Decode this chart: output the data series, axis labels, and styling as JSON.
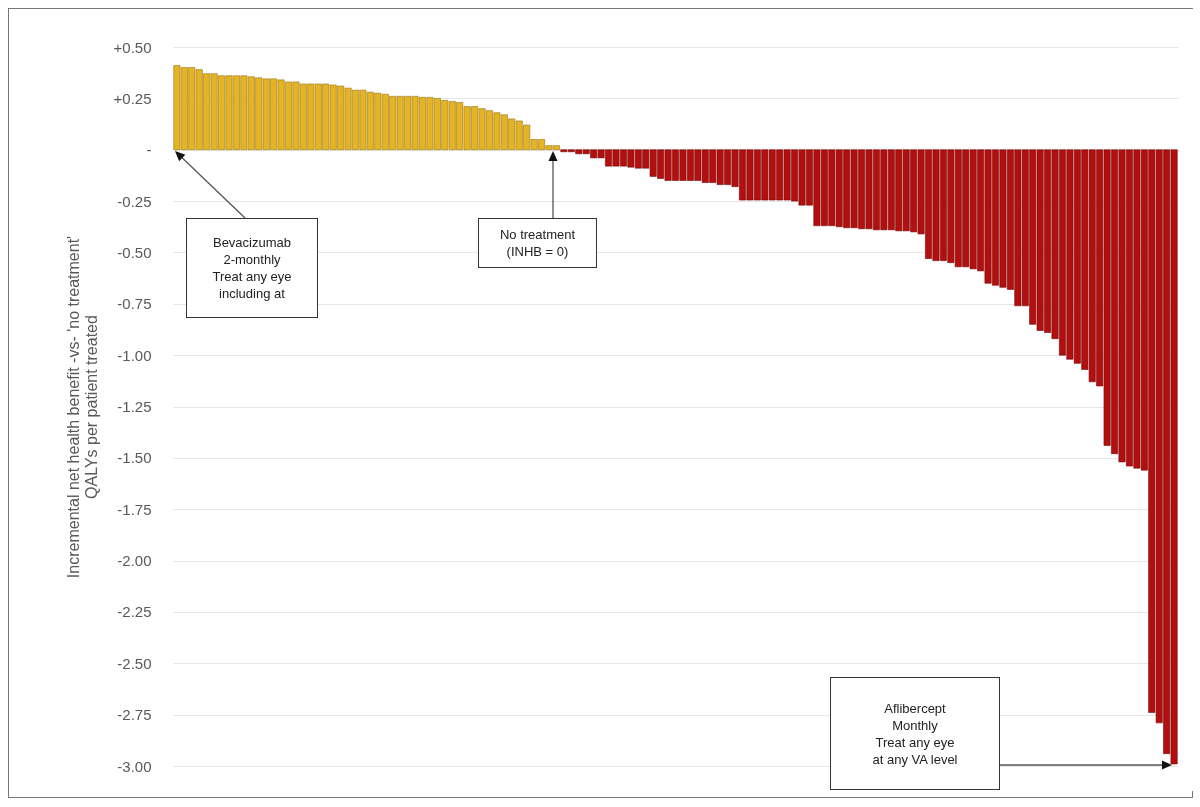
{
  "chart_data": {
    "type": "bar",
    "ylabel": "Incremental net health benefit -vs- 'no treatment'\nQALYs per patient treated",
    "categories": [
      null,
      null,
      null,
      null,
      null,
      null,
      null,
      null,
      null,
      null,
      null,
      null,
      null,
      null,
      null,
      null,
      null,
      null,
      null,
      null,
      null,
      null,
      null,
      null,
      null,
      null,
      null,
      null,
      null,
      null,
      null,
      null,
      null,
      null,
      null,
      null,
      null,
      null,
      null,
      null,
      null,
      null,
      null,
      null,
      null,
      null,
      null,
      null,
      null,
      null,
      null,
      null,
      null,
      null,
      null,
      null,
      null,
      null,
      null,
      null,
      null,
      null,
      null,
      null,
      null,
      null,
      null,
      null,
      null,
      null,
      null,
      null,
      null,
      null,
      null,
      null,
      null,
      null,
      null,
      null,
      null,
      null,
      null,
      null,
      null,
      null,
      null,
      null,
      null,
      null,
      null,
      null,
      null,
      null,
      null,
      null,
      null,
      null,
      null,
      null,
      null,
      null,
      null,
      null,
      null,
      null,
      null,
      null,
      null,
      null,
      null,
      null,
      null,
      null,
      null,
      null,
      null,
      null,
      null,
      null,
      null,
      null,
      null,
      null,
      null,
      null,
      null,
      null,
      null,
      null,
      null,
      null,
      null,
      null,
      null
    ],
    "series": [
      {
        "color": "#e6b422",
        "values": [
          0.41,
          0.4,
          0.4,
          0.39,
          0.37,
          0.37,
          0.36,
          0.36,
          0.36,
          0.36,
          0.355,
          0.35,
          0.345,
          0.345,
          0.34,
          0.33,
          0.33,
          0.32,
          0.32,
          0.32,
          0.32,
          0.315,
          0.31,
          0.3,
          0.29,
          0.29,
          0.28,
          0.275,
          0.27,
          0.26,
          0.26,
          0.26,
          0.26,
          0.255,
          0.255,
          0.25,
          0.24,
          0.235,
          0.23,
          0.21,
          0.21,
          0.2,
          0.19,
          0.18,
          0.17,
          0.15,
          0.14,
          0.12,
          0.05,
          0.05,
          0.02,
          0.02,
          null,
          null,
          null,
          null,
          null,
          null,
          null,
          null,
          null,
          null,
          null,
          null,
          null,
          null,
          null,
          null,
          null,
          null,
          null,
          null,
          null,
          null,
          null,
          null,
          null,
          null,
          null,
          null,
          null,
          null,
          null,
          null,
          null,
          null,
          null,
          null,
          null,
          null,
          null,
          null,
          null,
          null,
          null,
          null,
          null,
          null,
          null,
          null,
          null,
          null,
          null,
          null,
          null,
          null,
          null,
          null,
          null,
          null,
          null,
          null,
          null,
          null,
          null,
          null,
          null,
          null,
          null,
          null,
          null,
          null,
          null,
          null,
          null,
          null,
          null,
          null,
          null,
          null,
          null,
          null,
          null,
          null,
          null
        ]
      },
      {
        "color": "#b40f0f",
        "values": [
          null,
          null,
          null,
          null,
          null,
          null,
          null,
          null,
          null,
          null,
          null,
          null,
          null,
          null,
          null,
          null,
          null,
          null,
          null,
          null,
          null,
          null,
          null,
          null,
          null,
          null,
          null,
          null,
          null,
          null,
          null,
          null,
          null,
          null,
          null,
          null,
          null,
          null,
          null,
          null,
          null,
          null,
          null,
          null,
          null,
          null,
          null,
          null,
          null,
          null,
          null,
          null,
          -0.01,
          -0.01,
          -0.02,
          -0.02,
          -0.04,
          -0.04,
          -0.08,
          -0.08,
          -0.08,
          -0.085,
          -0.09,
          -0.09,
          -0.13,
          -0.14,
          -0.15,
          -0.15,
          -0.15,
          -0.15,
          -0.15,
          -0.16,
          -0.16,
          -0.17,
          -0.17,
          -0.18,
          -0.245,
          -0.245,
          -0.245,
          -0.245,
          -0.245,
          -0.245,
          -0.245,
          -0.25,
          -0.27,
          -0.27,
          -0.37,
          -0.37,
          -0.37,
          -0.375,
          -0.38,
          -0.38,
          -0.385,
          -0.385,
          -0.39,
          -0.39,
          -0.39,
          -0.395,
          -0.395,
          -0.4,
          -0.41,
          -0.53,
          -0.54,
          -0.54,
          -0.55,
          -0.57,
          -0.57,
          -0.58,
          -0.59,
          -0.65,
          -0.66,
          -0.67,
          -0.68,
          -0.76,
          -0.76,
          -0.85,
          -0.88,
          -0.89,
          -0.92,
          -1.0,
          -1.02,
          -1.04,
          -1.07,
          -1.13,
          -1.15,
          -1.44,
          -1.48,
          -1.52,
          -1.54,
          -1.55,
          -1.56,
          -2.74,
          -2.79,
          -2.94,
          -2.99
        ]
      }
    ],
    "ylim": [
      -3,
      0.5
    ],
    "yticks": [
      {
        "value": 0.5,
        "label": "+0.50"
      },
      {
        "value": 0.25,
        "label": "+0.25"
      },
      {
        "value": 0,
        "label": "-"
      },
      {
        "value": -0.25,
        "label": "-0.25"
      },
      {
        "value": -0.5,
        "label": "-0.50"
      },
      {
        "value": -0.75,
        "label": "-0.75"
      },
      {
        "value": -1,
        "label": "-1.00"
      },
      {
        "value": -1.25,
        "label": "-1.25"
      },
      {
        "value": -1.5,
        "label": "-1.50"
      },
      {
        "value": -1.75,
        "label": "-1.75"
      },
      {
        "value": -2,
        "label": "-2.00"
      },
      {
        "value": -2.25,
        "label": "-2.25"
      },
      {
        "value": -2.5,
        "label": "-2.50"
      },
      {
        "value": -2.75,
        "label": "-2.75"
      },
      {
        "value": -3,
        "label": "-3.00"
      }
    ],
    "grid": "y",
    "tick_labels": "y",
    "annotations": [
      "Bevacizumab\n2-monthly\nTreat any eye\nincluding at",
      "No treatment\n(INHB = 0)",
      "Aflibercept\nMonthly\nTreat any eye\nat any VA level"
    ]
  }
}
